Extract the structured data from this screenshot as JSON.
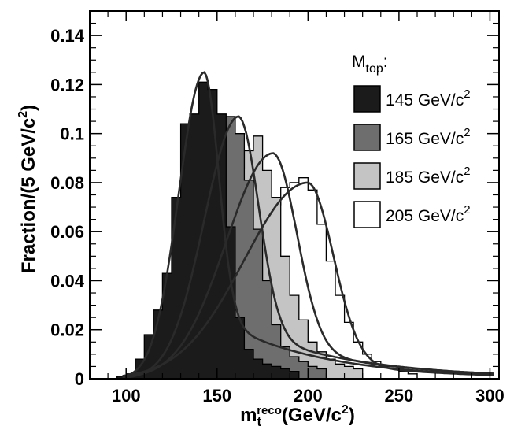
{
  "chart_data": {
    "type": "histogram",
    "xlabel": "m",
    "xlabel_sub": "t",
    "xlabel_sup": "reco",
    "xlabel_unit": "(GeV/c",
    "xlabel_unit_sup": "2",
    "xlabel_unit_end": ")",
    "ylabel": "Fraction/(5 GeV/c",
    "ylabel_sup": "2",
    "ylabel_end": ")",
    "xlim": [
      80,
      305
    ],
    "ylim": [
      0,
      0.15
    ],
    "x_ticks": [
      100,
      150,
      200,
      250,
      300
    ],
    "y_ticks": [
      0,
      0.02,
      0.04,
      0.06,
      0.08,
      0.1,
      0.12,
      0.14
    ],
    "x_tick_labels": [
      "100",
      "150",
      "200",
      "250",
      "300"
    ],
    "y_tick_labels": [
      "0",
      "0.02",
      "0.04",
      "0.06",
      "0.08",
      "0.1",
      "0.12",
      "0.14"
    ],
    "grid": false,
    "legend_position": "top-right",
    "legend_title": "M",
    "legend_title_sub": "top",
    "legend_title_end": ":",
    "bin_width": 5,
    "series": [
      {
        "name": "145 GeV/c",
        "name_sup": "2",
        "fill": "#1b1b1b",
        "bin_start": 95,
        "values": [
          0.001,
          0.002,
          0.008,
          0.018,
          0.028,
          0.043,
          0.074,
          0.104,
          0.108,
          0.121,
          0.118,
          0.108,
          0.062,
          0.025,
          0.012,
          0.008,
          0.006,
          0.005,
          0.004,
          0.003
        ]
      },
      {
        "name": "165 GeV/c",
        "name_sup": "2",
        "fill": "#6e6e6e",
        "bin_start": 100,
        "values": [
          0.001,
          0.004,
          0.008,
          0.016,
          0.022,
          0.03,
          0.042,
          0.05,
          0.073,
          0.092,
          0.107,
          0.107,
          0.1,
          0.081,
          0.061,
          0.04,
          0.022,
          0.013,
          0.009,
          0.007,
          0.005,
          0.004
        ]
      },
      {
        "name": "185 GeV/c",
        "name_sup": "2",
        "fill": "#c4c4c4",
        "bin_start": 105,
        "values": [
          0.002,
          0.006,
          0.011,
          0.017,
          0.022,
          0.024,
          0.03,
          0.038,
          0.048,
          0.066,
          0.073,
          0.086,
          0.093,
          0.099,
          0.085,
          0.074,
          0.05,
          0.034,
          0.024,
          0.015,
          0.011,
          0.008,
          0.006,
          0.005,
          0.004
        ]
      },
      {
        "name": "205 GeV/c",
        "name_sup": "2",
        "fill": "#ffffff",
        "bin_start": 110,
        "values": [
          0.002,
          0.005,
          0.009,
          0.013,
          0.018,
          0.022,
          0.026,
          0.031,
          0.036,
          0.04,
          0.046,
          0.052,
          0.058,
          0.064,
          0.071,
          0.078,
          0.08,
          0.082,
          0.077,
          0.063,
          0.048,
          0.034,
          0.023,
          0.015,
          0.01,
          0.007,
          0.005,
          0.004,
          0.003,
          0.002
        ]
      }
    ],
    "fit_curves": [
      {
        "series": "145 GeV/c",
        "peak_x": 143,
        "peak_y": 0.125,
        "sigma_left": 14,
        "sigma_right": 8,
        "tail": 0.22,
        "tail_scale": 55
      },
      {
        "series": "165 GeV/c",
        "peak_x": 162,
        "peak_y": 0.107,
        "sigma_left": 19,
        "sigma_right": 11,
        "tail": 0.2,
        "tail_scale": 60
      },
      {
        "series": "185 GeV/c",
        "peak_x": 181,
        "peak_y": 0.092,
        "sigma_left": 26,
        "sigma_right": 13,
        "tail": 0.16,
        "tail_scale": 62
      },
      {
        "series": "205 GeV/c",
        "peak_x": 200,
        "peak_y": 0.08,
        "sigma_left": 35,
        "sigma_right": 14,
        "tail": 0.1,
        "tail_scale": 60
      }
    ]
  }
}
